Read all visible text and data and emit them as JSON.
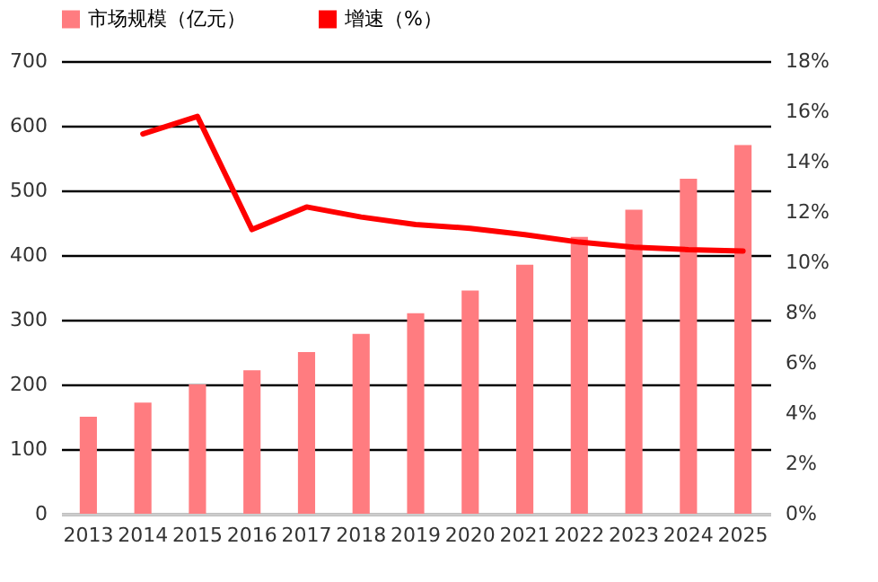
{
  "chart_data": {
    "type": "bar",
    "categories": [
      "2013",
      "2014",
      "2015",
      "2016",
      "2017",
      "2018",
      "2019",
      "2020",
      "2021",
      "2022",
      "2023",
      "2024",
      "2025"
    ],
    "series": [
      {
        "name": "市场规模（亿元）",
        "color": "#ff7c80",
        "values": [
          150,
          172,
          200,
          222,
          250,
          278,
          310,
          345,
          385,
          428,
          470,
          518,
          570
        ]
      },
      {
        "name": "增速（%）",
        "type": "line",
        "axis": "y2",
        "color": "#ff0000",
        "values": [
          null,
          15.1,
          15.8,
          11.3,
          12.2,
          11.8,
          11.5,
          11.35,
          11.1,
          10.8,
          10.6,
          10.5,
          10.45
        ]
      }
    ],
    "ylim": [
      0,
      700
    ],
    "yticks": [
      0,
      100,
      200,
      300,
      400,
      500,
      600,
      700
    ],
    "y2lim": [
      0,
      18
    ],
    "y2ticks": [
      {
        "value": 0,
        "label": "0%"
      },
      {
        "value": 2,
        "label": "2%"
      },
      {
        "value": 4,
        "label": "4%"
      },
      {
        "value": 6,
        "label": "6%"
      },
      {
        "value": 8,
        "label": "8%"
      },
      {
        "value": 10,
        "label": "10%"
      },
      {
        "value": 12,
        "label": "12%"
      },
      {
        "value": 14,
        "label": "14%"
      },
      {
        "value": 16,
        "label": "16%"
      },
      {
        "value": 18,
        "label": "18%"
      }
    ],
    "grid": "y",
    "legend": "top",
    "marker": "none",
    "line_style": "solid"
  }
}
